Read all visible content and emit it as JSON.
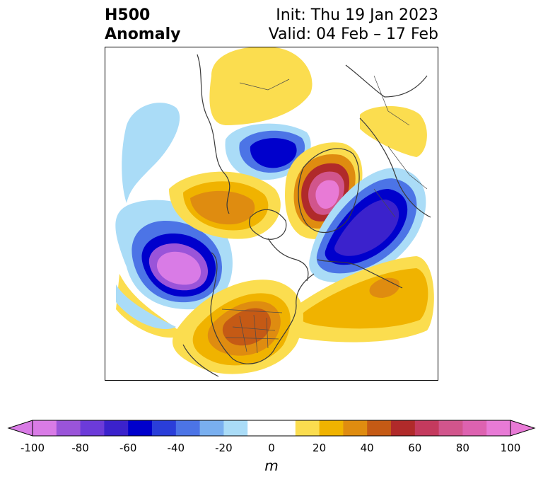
{
  "title": {
    "left_line1": "H500",
    "left_line2": "Anomaly",
    "right_line1": "Init: Thu 19 Jan 2023",
    "right_line2": "Valid: 04 Feb – 17 Feb"
  },
  "map": {
    "projection": "north-polar-stereographic",
    "features": [
      "coastlines",
      "country-borders",
      "us-state-borders"
    ]
  },
  "colorbar": {
    "unit": "m",
    "levels": [
      -100,
      -90,
      -80,
      -70,
      -60,
      -50,
      -40,
      -30,
      -20,
      -10,
      0,
      10,
      20,
      30,
      40,
      50,
      60,
      70,
      80,
      90,
      100
    ],
    "colors": [
      "#d97be6",
      "#9a54d9",
      "#6c3bd9",
      "#3b22cc",
      "#0000cc",
      "#2a3ed9",
      "#4c74e6",
      "#79afef",
      "#aadcf7",
      "#ffffff",
      "#ffffff",
      "#fbdd4f",
      "#f0b300",
      "#df8c10",
      "#c55a15",
      "#b02a2a",
      "#c43a5e",
      "#d1558c",
      "#dd62b0",
      "#e87ad6"
    ],
    "tick_labels": [
      "-100",
      "-80",
      "-60",
      "-40",
      "-20",
      "0",
      "20",
      "40",
      "60",
      "80",
      "100"
    ],
    "extend": "both"
  }
}
